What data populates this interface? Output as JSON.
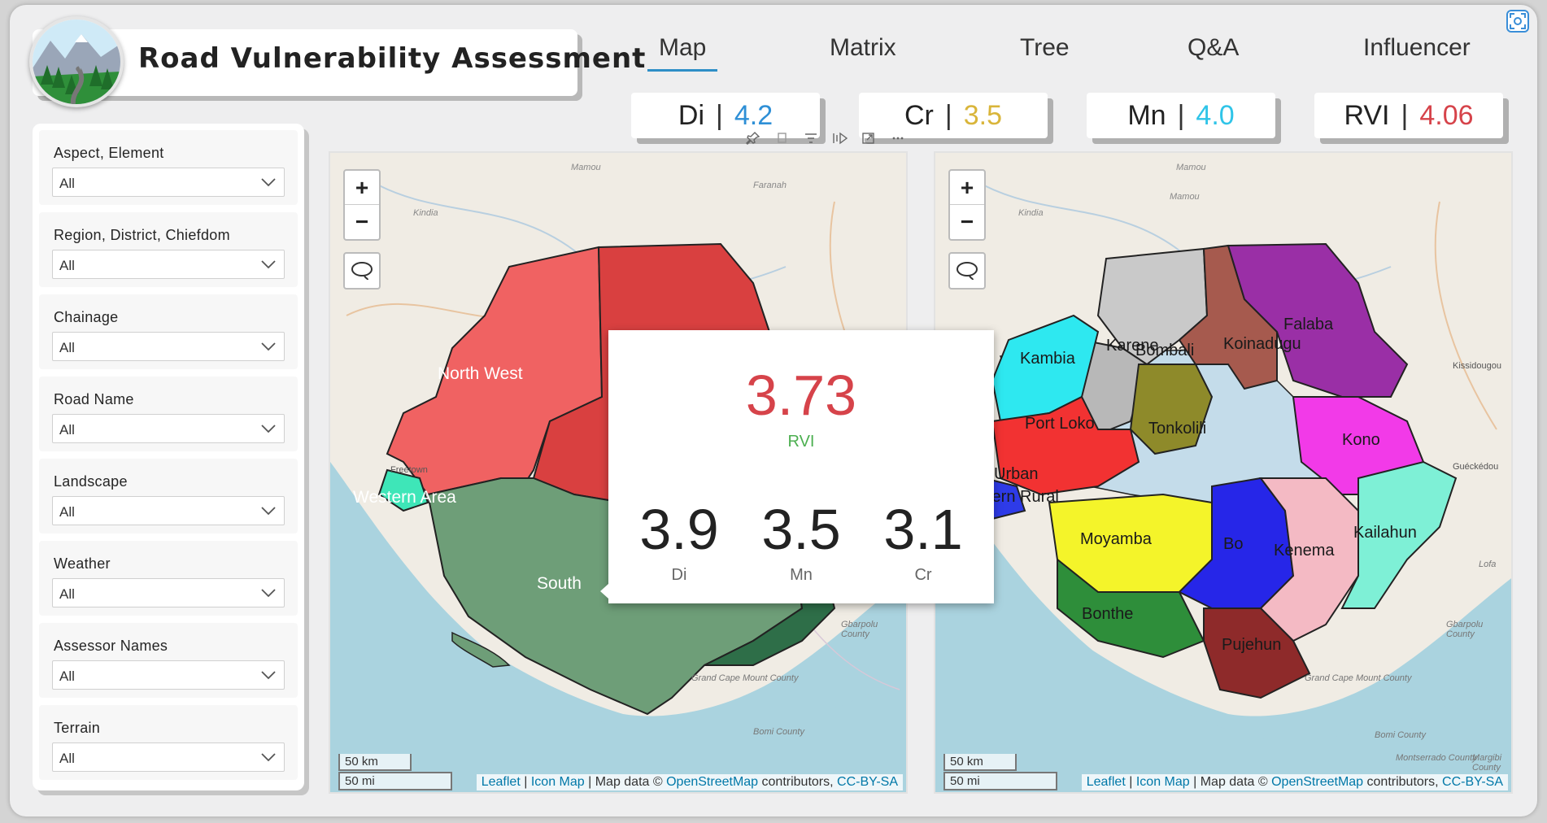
{
  "header": {
    "title": "Road Vulnerability Assessment",
    "logo_icon": "landscape-road-logo-icon"
  },
  "nav": {
    "tabs": [
      {
        "label": "Map",
        "active": true
      },
      {
        "label": "Matrix",
        "active": false
      },
      {
        "label": "Tree",
        "active": false
      },
      {
        "label": "Q&A",
        "active": false
      },
      {
        "label": "Influencer",
        "active": false
      }
    ]
  },
  "kpis": [
    {
      "name": "Di",
      "value": "4.2",
      "color": "#2e8fd6"
    },
    {
      "name": "Cr",
      "value": "3.5",
      "color": "#d9b53a"
    },
    {
      "name": "Mn",
      "value": "4.0",
      "color": "#2fc4e8"
    },
    {
      "name": "RVI",
      "value": "4.06",
      "color": "#d6434a"
    }
  ],
  "filters": [
    {
      "label": "Aspect, Element",
      "value": "All"
    },
    {
      "label": "Region, District, Chiefdom",
      "value": "All"
    },
    {
      "label": "Chainage",
      "value": "All"
    },
    {
      "label": "Road Name",
      "value": "All"
    },
    {
      "label": "Landscape",
      "value": "All"
    },
    {
      "label": "Weather",
      "value": "All"
    },
    {
      "label": "Assessor Names",
      "value": "All"
    },
    {
      "label": "Terrain",
      "value": "All"
    }
  ],
  "map_left": {
    "zoom_in": "+",
    "zoom_out": "−",
    "regions": [
      {
        "name": "North West",
        "color": "#f06262"
      },
      {
        "name": "Western Area",
        "color": "#3ee6b8"
      },
      {
        "name": "South",
        "color": "#6e9e78"
      }
    ],
    "scale_km": "50 km",
    "scale_mi": "50 mi"
  },
  "map_right": {
    "zoom_in": "+",
    "zoom_out": "−",
    "districts": [
      {
        "name": "Kambia",
        "color": "#2ee8f0"
      },
      {
        "name": "Karene",
        "color": "#c9c9c9"
      },
      {
        "name": "Bombali",
        "color": "#b8b8b8"
      },
      {
        "name": "Koinadugu",
        "color": "#a65a4e"
      },
      {
        "name": "Falaba",
        "color": "#9a2fa6"
      },
      {
        "name": "Port Loko",
        "color": "#f23232"
      },
      {
        "name": "Tonkolili",
        "color": "#8e8a2a"
      },
      {
        "name": "Kono",
        "color": "#f23ae8"
      },
      {
        "name": "Urban",
        "color": "#2e3be8"
      },
      {
        "name": "tern Rural",
        "color": "#2e3be8"
      },
      {
        "name": "Moyamba",
        "color": "#f4f42a"
      },
      {
        "name": "Bo",
        "color": "#2626e8"
      },
      {
        "name": "Kenema",
        "color": "#f4bac4"
      },
      {
        "name": "Kailahun",
        "color": "#7ef0d6"
      },
      {
        "name": "Bonthe",
        "color": "#2e8e3a"
      },
      {
        "name": "Pujehun",
        "color": "#8e2a2a"
      }
    ],
    "scale_km": "50 km",
    "scale_mi": "50 mi"
  },
  "attribution": {
    "leaflet": "Leaflet",
    "sep1": "|",
    "iconmap": "Icon Map",
    "sep2": "| Map data ©",
    "osm": "OpenStreetMap",
    "contrib": "contributors,",
    "license": "CC-BY-SA"
  },
  "map_places": [
    "Mamou",
    "Faranah",
    "Kindia",
    "Kissidougou",
    "Guéckédou",
    "Gbarpolu County",
    "Grand Cape Mount County",
    "Bomi County",
    "Montserrado County",
    "Margibi County",
    "Freetown",
    "Lofa"
  ],
  "tooltip": {
    "main_value": "3.73",
    "main_label": "RVI",
    "stats": [
      {
        "value": "3.9",
        "label": "Di"
      },
      {
        "value": "3.5",
        "label": "Mn"
      },
      {
        "value": "3.1",
        "label": "Cr"
      }
    ]
  },
  "toolbar_icons": [
    "pin-icon",
    "copy-icon",
    "filter-icon",
    "spotlight-icon",
    "focus-mode-icon",
    "more-options-icon"
  ]
}
